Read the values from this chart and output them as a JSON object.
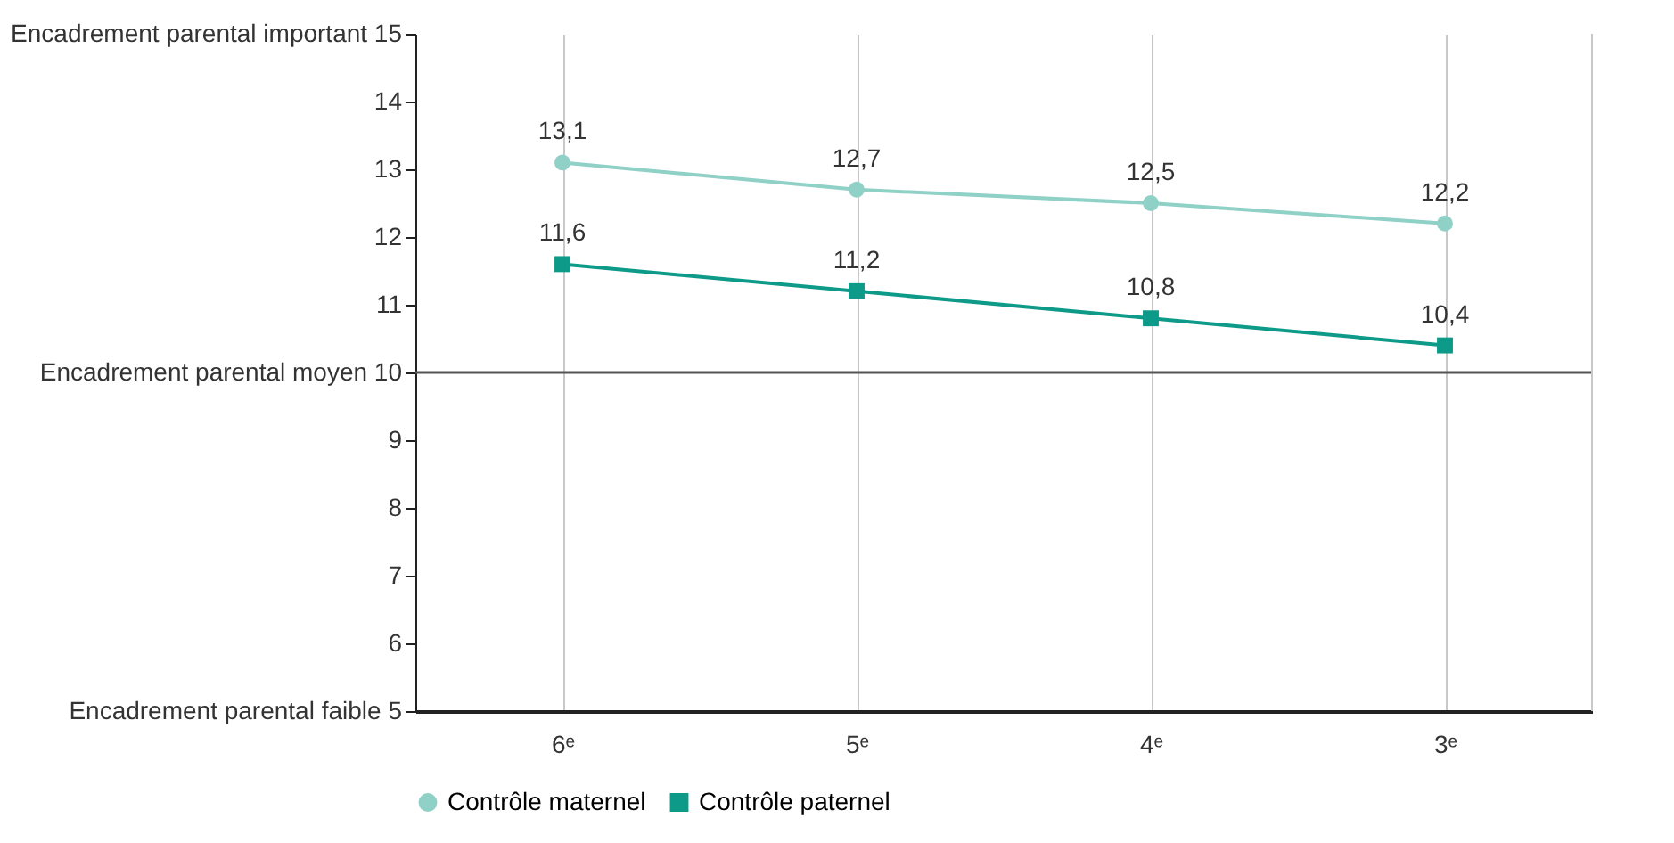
{
  "chart_data": {
    "type": "line",
    "categories": [
      "6ᵉ",
      "5ᵉ",
      "4ᵉ",
      "3ᵉ"
    ],
    "ylim": [
      5,
      15
    ],
    "yticks": [
      {
        "value": 5,
        "label": "Encadrement parental faible 5"
      },
      6,
      7,
      8,
      9,
      {
        "value": 10,
        "label": "Encadrement parental moyen 10"
      },
      11,
      12,
      13,
      14,
      {
        "value": 15,
        "label": "Encadrement parental important 15"
      }
    ],
    "grid": "x",
    "legend": "bottom",
    "ref_lines": [
      {
        "axis": "y",
        "value": 10,
        "color": "#555555"
      }
    ],
    "series": [
      {
        "name": "Contrôle maternel",
        "color": "#8fd0c7",
        "marker": "circle",
        "values": [
          13.1,
          12.7,
          12.5,
          12.2
        ],
        "value_labels": [
          "13,1",
          "12,7",
          "12,5",
          "12,2"
        ]
      },
      {
        "name": "Contrôle paternel",
        "color": "#0e9a88",
        "marker": "square",
        "values": [
          11.6,
          11.2,
          10.8,
          10.4
        ],
        "value_labels": [
          "11,6",
          "11,2",
          "10,8",
          "10,4"
        ]
      }
    ]
  }
}
